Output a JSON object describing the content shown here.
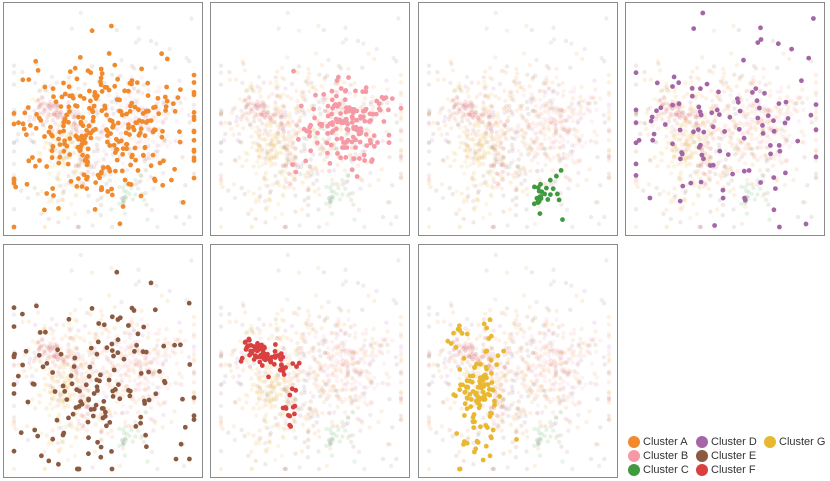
{
  "chart_data": {
    "type": "scatter",
    "title": "",
    "xlabel": "",
    "ylabel": "",
    "panel_highlight_order": [
      "Cluster A",
      "Cluster B",
      "Cluster C",
      "Cluster D",
      "Cluster E",
      "Cluster F",
      "Cluster G"
    ],
    "series": [
      {
        "name": "Cluster A",
        "color": "#f08a2c",
        "count": 300,
        "extent": {
          "x": [
            0.0,
            1.0
          ],
          "y": [
            0.12,
            0.92
          ]
        }
      },
      {
        "name": "Cluster B",
        "color": "#f59aa5",
        "count": 150,
        "extent": {
          "x": [
            0.45,
            0.95
          ],
          "y": [
            0.45,
            0.92
          ]
        }
      },
      {
        "name": "Cluster C",
        "color": "#3f9a40",
        "count": 25,
        "extent": {
          "x": [
            0.55,
            0.85
          ],
          "y": [
            0.15,
            0.75
          ]
        }
      },
      {
        "name": "Cluster D",
        "color": "#a566a7",
        "count": 110,
        "extent": {
          "x": [
            0.0,
            1.0
          ],
          "y": [
            0.1,
            1.0
          ]
        }
      },
      {
        "name": "Cluster E",
        "color": "#8b5a40",
        "count": 150,
        "extent": {
          "x": [
            0.0,
            0.95
          ],
          "y": [
            0.0,
            1.0
          ]
        }
      },
      {
        "name": "Cluster F",
        "color": "#d94040",
        "count": 70,
        "extent": {
          "x": [
            0.05,
            0.45
          ],
          "y": [
            0.25,
            0.85
          ]
        }
      },
      {
        "name": "Cluster G",
        "color": "#e8b830",
        "count": 110,
        "extent": {
          "x": [
            0.05,
            0.45
          ],
          "y": [
            0.25,
            0.9
          ]
        }
      }
    ]
  },
  "legend": {
    "items": [
      {
        "label": "Cluster A",
        "color": "#f08a2c"
      },
      {
        "label": "Cluster B",
        "color": "#f59aa5"
      },
      {
        "label": "Cluster C",
        "color": "#3f9a40"
      },
      {
        "label": "Cluster D",
        "color": "#a566a7"
      },
      {
        "label": "Cluster E",
        "color": "#8b5a40"
      },
      {
        "label": "Cluster F",
        "color": "#d94040"
      },
      {
        "label": "Cluster G",
        "color": "#e8b830"
      }
    ]
  }
}
